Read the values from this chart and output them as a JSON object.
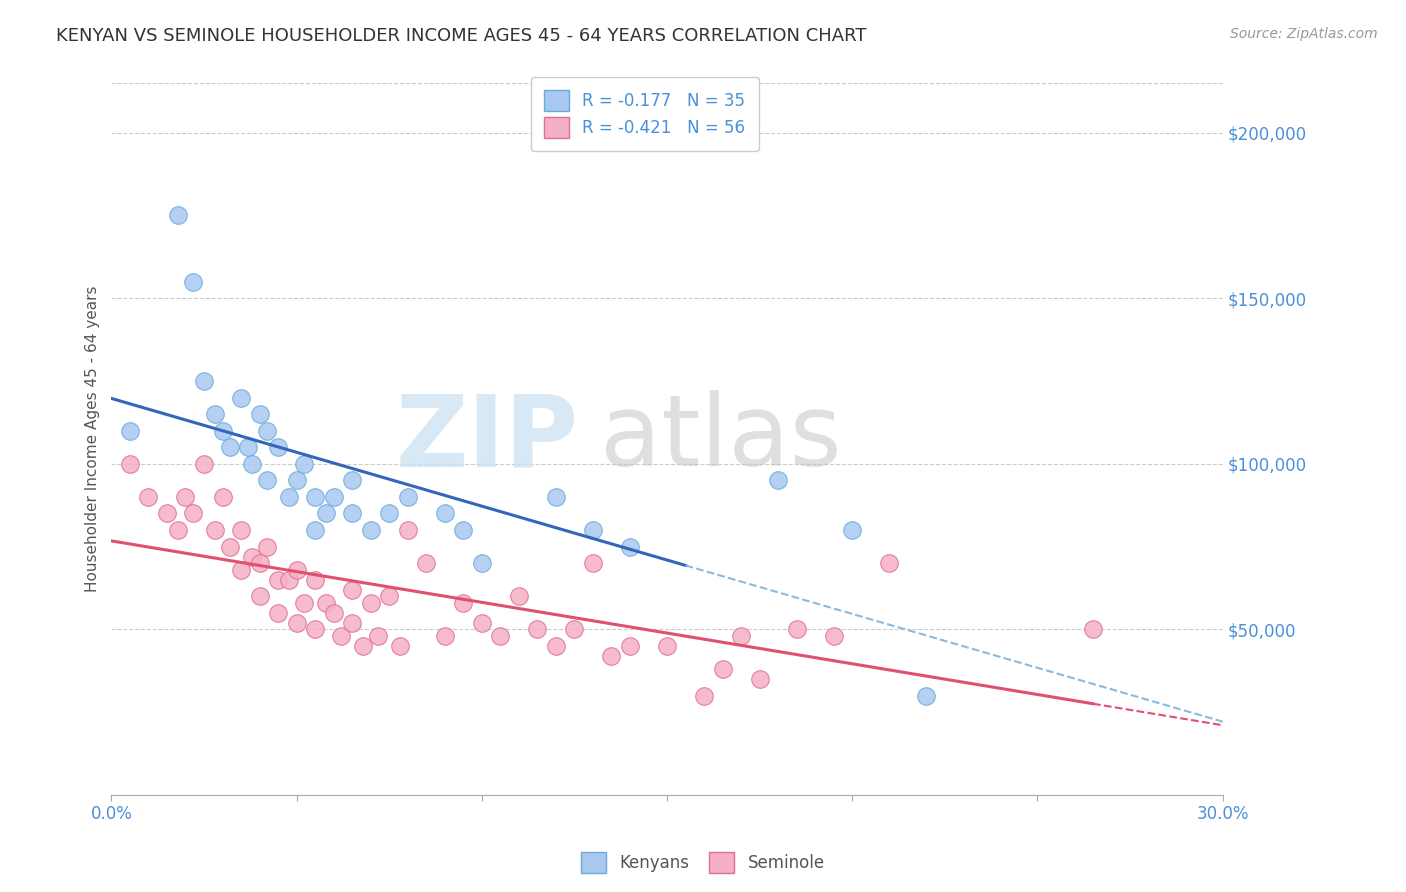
{
  "title": "KENYAN VS SEMINOLE HOUSEHOLDER INCOME AGES 45 - 64 YEARS CORRELATION CHART",
  "source": "Source: ZipAtlas.com",
  "ylabel": "Householder Income Ages 45 - 64 years",
  "yticks_labels": [
    "$200,000",
    "$150,000",
    "$100,000",
    "$50,000"
  ],
  "yticks_values": [
    200000,
    150000,
    100000,
    50000
  ],
  "xlim": [
    0.0,
    0.3
  ],
  "ylim": [
    0,
    215000
  ],
  "kenyan_color": "#a8c8f0",
  "kenyan_edge": "#6aaad8",
  "seminole_color": "#f5b0c5",
  "seminole_edge": "#e07090",
  "trend_kenyan_color": "#3366bb",
  "trend_seminole_color": "#e05070",
  "trend_kenyan_dash_color": "#88bbdd",
  "watermark_zip_color": "#c8dff0",
  "watermark_atlas_color": "#c0c0c0",
  "kenyan_x": [
    0.005,
    0.018,
    0.022,
    0.025,
    0.028,
    0.03,
    0.032,
    0.035,
    0.037,
    0.038,
    0.04,
    0.042,
    0.042,
    0.045,
    0.048,
    0.05,
    0.052,
    0.055,
    0.055,
    0.058,
    0.06,
    0.065,
    0.065,
    0.07,
    0.075,
    0.08,
    0.09,
    0.095,
    0.1,
    0.12,
    0.13,
    0.14,
    0.18,
    0.2,
    0.22
  ],
  "kenyan_y": [
    110000,
    175000,
    155000,
    125000,
    115000,
    110000,
    105000,
    120000,
    105000,
    100000,
    115000,
    110000,
    95000,
    105000,
    90000,
    95000,
    100000,
    90000,
    80000,
    85000,
    90000,
    85000,
    95000,
    80000,
    85000,
    90000,
    85000,
    80000,
    70000,
    90000,
    80000,
    75000,
    95000,
    80000,
    30000
  ],
  "seminole_x": [
    0.005,
    0.01,
    0.015,
    0.018,
    0.02,
    0.022,
    0.025,
    0.028,
    0.03,
    0.032,
    0.035,
    0.035,
    0.038,
    0.04,
    0.04,
    0.042,
    0.045,
    0.045,
    0.048,
    0.05,
    0.05,
    0.052,
    0.055,
    0.055,
    0.058,
    0.06,
    0.062,
    0.065,
    0.065,
    0.068,
    0.07,
    0.072,
    0.075,
    0.078,
    0.08,
    0.085,
    0.09,
    0.095,
    0.1,
    0.105,
    0.11,
    0.115,
    0.12,
    0.125,
    0.13,
    0.135,
    0.14,
    0.15,
    0.16,
    0.165,
    0.17,
    0.175,
    0.185,
    0.195,
    0.21,
    0.265
  ],
  "seminole_y": [
    100000,
    90000,
    85000,
    80000,
    90000,
    85000,
    100000,
    80000,
    90000,
    75000,
    80000,
    68000,
    72000,
    70000,
    60000,
    75000,
    65000,
    55000,
    65000,
    68000,
    52000,
    58000,
    65000,
    50000,
    58000,
    55000,
    48000,
    62000,
    52000,
    45000,
    58000,
    48000,
    60000,
    45000,
    80000,
    70000,
    48000,
    58000,
    52000,
    48000,
    60000,
    50000,
    45000,
    50000,
    70000,
    42000,
    45000,
    45000,
    30000,
    38000,
    48000,
    35000,
    50000,
    48000,
    70000,
    50000
  ]
}
